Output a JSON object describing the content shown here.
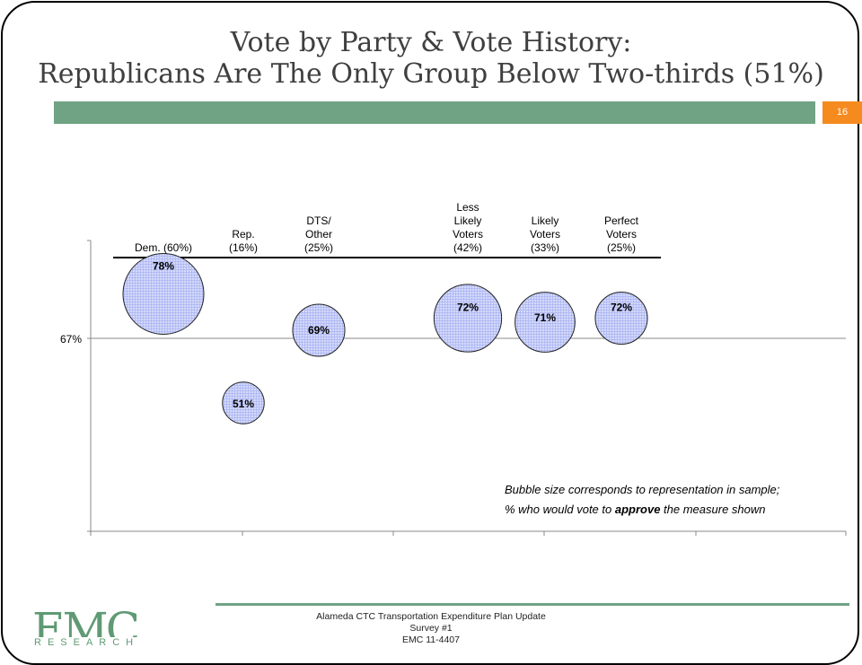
{
  "slide": {
    "title_line1": "Vote by Party & Vote History:",
    "title_line2": "Republicans Are The Only Group Below Two-thirds (51%)",
    "page_number": "16",
    "accent_color": "#6fa383",
    "page_number_color": "#f58a1f"
  },
  "note": {
    "line1": "Bubble size corresponds to representation in sample;",
    "line2_prefix": "% who would vote to ",
    "line2_bold": "approve",
    "line2_suffix": " the measure shown"
  },
  "footer": {
    "line1": "Alameda CTC Transportation Expenditure Plan Update",
    "line2": "Survey #1",
    "line3": "EMC 11-4407"
  },
  "logo": {
    "letters": "EMC",
    "subtitle": "RESEARCH"
  },
  "chart_data": {
    "type": "scatter",
    "reference_line": {
      "value": 67,
      "label": "67%"
    },
    "bubble_fill": "#aab4f2",
    "series": [
      {
        "label": [
          "Dem. (60%)"
        ],
        "value": 78,
        "value_label": "78%",
        "size": 60
      },
      {
        "label": [
          "Rep.",
          "(16%)"
        ],
        "value": 51,
        "value_label": "51%",
        "size": 16
      },
      {
        "label": [
          "DTS/",
          "Other",
          "(25%)"
        ],
        "value": 69,
        "value_label": "69%",
        "size": 25
      },
      {
        "label": [
          "Less",
          "Likely",
          "Voters",
          "(42%)"
        ],
        "value": 72,
        "value_label": "72%",
        "size": 42
      },
      {
        "label": [
          "Likely",
          "Voters",
          "(33%)"
        ],
        "value": 71,
        "value_label": "71%",
        "size": 33
      },
      {
        "label": [
          "Perfect",
          "Voters",
          "(25%)"
        ],
        "value": 72,
        "value_label": "72%",
        "size": 25
      }
    ]
  }
}
